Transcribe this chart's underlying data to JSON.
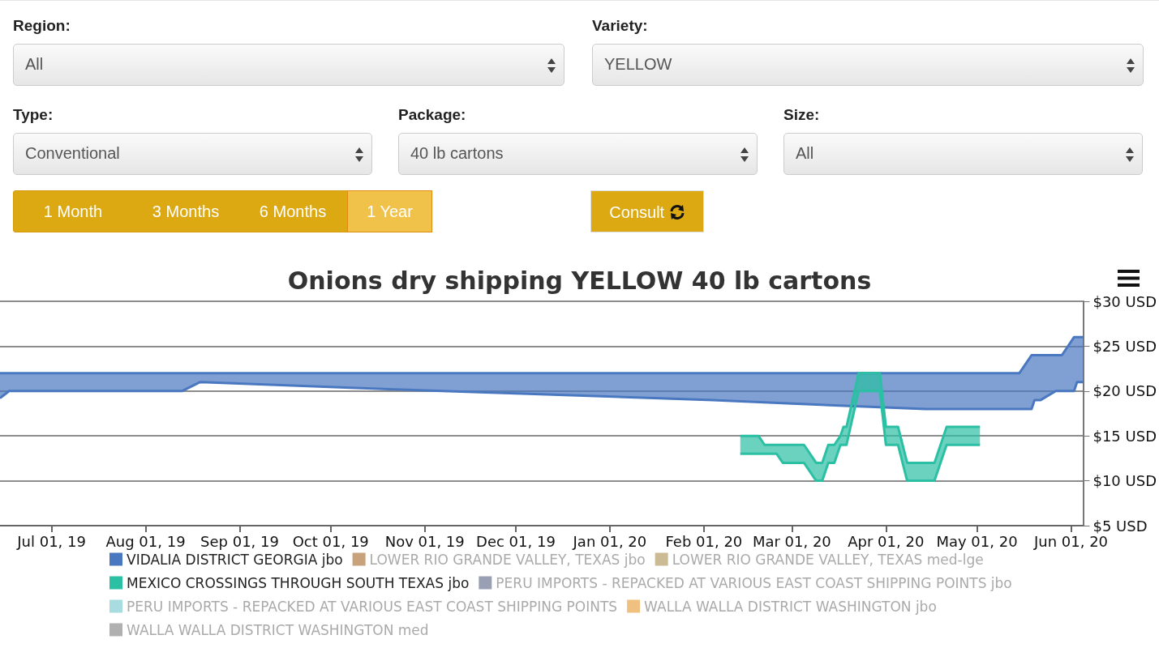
{
  "chart_data": {
    "type": "area",
    "title": "Onions dry shipping YELLOW 40 lb cartons",
    "annotations": [
      "Region:",
      "All",
      "Variety:",
      "YELLOW",
      "Type:",
      "Conventional",
      "Package:",
      "40 lb cartons",
      "Size:",
      "All",
      "1 Month",
      "3 Months",
      "6 Months",
      "1 Year",
      "Consult"
    ],
    "xlim": [
      "2019-06-14",
      "2020-06-05"
    ],
    "xticks": [
      {
        "value": "2019-07-01",
        "label": "Jul 01, 19"
      },
      {
        "value": "2019-08-01",
        "label": "Aug 01, 19"
      },
      {
        "value": "2019-09-01",
        "label": "Sep 01, 19"
      },
      {
        "value": "2019-10-01",
        "label": "Oct 01, 19"
      },
      {
        "value": "2019-11-01",
        "label": "Nov 01, 19"
      },
      {
        "value": "2019-12-01",
        "label": "Dec 01, 19"
      },
      {
        "value": "2020-01-01",
        "label": "Jan 01, 20"
      },
      {
        "value": "2020-02-01",
        "label": "Feb 01, 20"
      },
      {
        "value": "2020-03-01",
        "label": "Mar 01, 20"
      },
      {
        "value": "2020-04-01",
        "label": "Apr 01, 20"
      },
      {
        "value": "2020-05-01",
        "label": "May 01, 20"
      },
      {
        "value": "2020-06-01",
        "label": "Jun 01, 20"
      }
    ],
    "ylim": [
      5,
      30
    ],
    "yticks": [
      {
        "value": 5,
        "label": "$5 USD"
      },
      {
        "value": 10,
        "label": "$10 USD"
      },
      {
        "value": 15,
        "label": "$15 USD"
      },
      {
        "value": 20,
        "label": "$20 USD"
      },
      {
        "value": 25,
        "label": "$25 USD"
      },
      {
        "value": 30,
        "label": "$30 USD"
      }
    ],
    "grid": "y",
    "legend": "bottom",
    "series": [
      {
        "name": "VIDALIA DISTRICT GEORGIA jbo",
        "color": "#4a78c0",
        "x": [
          "2019-06-14",
          "2019-06-17",
          "2019-08-13",
          "2019-08-19",
          "2019-10-20",
          "2020-02-04",
          "2020-03-01",
          "2020-04-14",
          "2020-05-15",
          "2020-05-19",
          "2020-05-20",
          "2020-05-22",
          "2020-05-27",
          "2020-05-29",
          "2020-06-02",
          "2020-06-03",
          "2020-06-05"
        ],
        "values": [
          22,
          22,
          22,
          22,
          22,
          22,
          22,
          22,
          22,
          24,
          24,
          24,
          24,
          24,
          26,
          26,
          26
        ]
      },
      {
        "type": "line",
        "color": "#4a78c0",
        "x": [
          "2019-06-14",
          "2019-06-17",
          "2019-08-13",
          "2019-08-19",
          "2019-10-20",
          "2020-02-04",
          "2020-03-01",
          "2020-04-14",
          "2020-05-15",
          "2020-05-19",
          "2020-05-20",
          "2020-05-22",
          "2020-05-27",
          "2020-05-29",
          "2020-06-02",
          "2020-06-03",
          "2020-06-05"
        ],
        "values": [
          19.2,
          20,
          20,
          21,
          20.2,
          19,
          18.6,
          18,
          18,
          18,
          19,
          19,
          20,
          20,
          20,
          21,
          21
        ]
      },
      {
        "name": "LOWER RIO GRANDE VALLEY, TEXAS jbo",
        "color": "#c8a27a"
      },
      {
        "name": "LOWER RIO GRANDE VALLEY, TEXAS med-lge",
        "color": "#cbbb94"
      },
      {
        "name": "MEXICO CROSSINGS THROUGH SOUTH TEXAS jbo",
        "color": "#2bbfa4",
        "x": [
          "2020-02-13",
          "2020-02-19",
          "2020-02-21",
          "2020-02-25",
          "2020-02-27",
          "2020-03-05",
          "2020-03-09",
          "2020-03-11",
          "2020-03-13",
          "2020-03-15",
          "2020-03-17",
          "2020-03-18",
          "2020-03-19",
          "2020-03-23",
          "2020-03-30",
          "2020-04-01",
          "2020-04-05",
          "2020-04-08",
          "2020-04-17",
          "2020-04-21",
          "2020-05-02"
        ],
        "values": [
          15,
          15,
          14,
          14,
          14,
          14,
          12,
          12,
          14,
          14,
          15,
          16,
          16,
          22,
          22,
          16,
          16,
          12,
          12,
          16,
          16
        ]
      },
      {
        "type": "line",
        "color": "#2bbfa4",
        "x": [
          "2020-02-13",
          "2020-02-19",
          "2020-02-21",
          "2020-02-25",
          "2020-02-27",
          "2020-03-05",
          "2020-03-09",
          "2020-03-11",
          "2020-03-13",
          "2020-03-15",
          "2020-03-17",
          "2020-03-18",
          "2020-03-19",
          "2020-03-23",
          "2020-03-30",
          "2020-04-01",
          "2020-04-05",
          "2020-04-08",
          "2020-04-17",
          "2020-04-21",
          "2020-05-02"
        ],
        "values": [
          13,
          13,
          13,
          13,
          12,
          12,
          10,
          10,
          12,
          12,
          14,
          14,
          14,
          20,
          20,
          14,
          14,
          10,
          10,
          14,
          14
        ]
      },
      {
        "name": "PERU IMPORTS - REPACKED AT VARIOUS EAST COAST SHIPPING POINTS jbo",
        "color": "#9aa0b4"
      },
      {
        "name": "PERU IMPORTS - REPACKED AT VARIOUS EAST COAST SHIPPING POINTS",
        "color": "#a8dce0"
      },
      {
        "name": "WALLA WALLA DISTRICT WASHINGTON jbo",
        "color": "#f0c080"
      },
      {
        "name": "WALLA WALLA DISTRICT WASHINGTON med",
        "color": "#b0b0b0"
      }
    ]
  }
}
